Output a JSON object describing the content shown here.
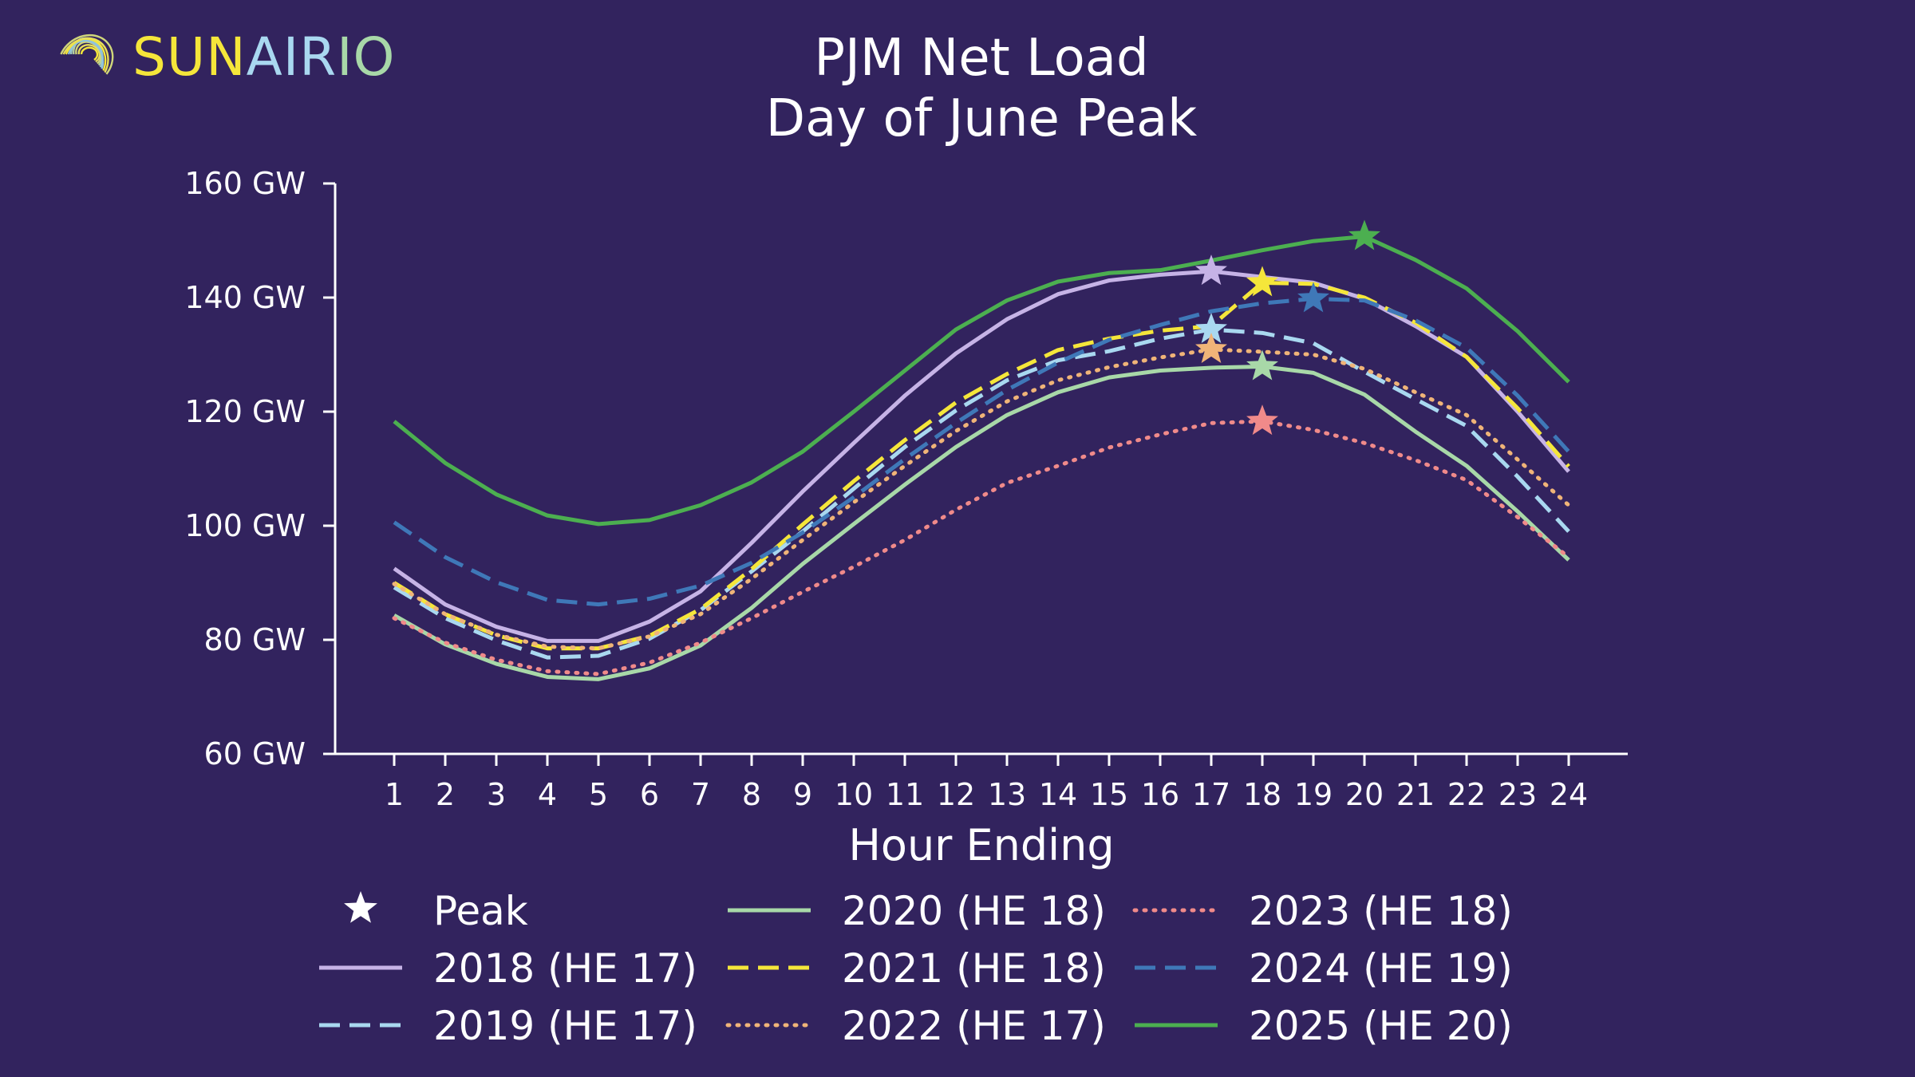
{
  "logo": {
    "part1": "SUN",
    "part2": "AIR",
    "part3": "IO",
    "colors": {
      "part1": "#f5e63a",
      "part2": "#a9d8f0",
      "part3": "#a8d8a8"
    }
  },
  "chart_data": {
    "type": "line",
    "title": "PJM Net Load",
    "subtitle": "Day of June Peak",
    "xlabel": "Hour Ending",
    "ylabel": "",
    "x": [
      1,
      2,
      3,
      4,
      5,
      6,
      7,
      8,
      9,
      10,
      11,
      12,
      13,
      14,
      15,
      16,
      17,
      18,
      19,
      20,
      21,
      22,
      23,
      24
    ],
    "x_tick_labels": [
      "1",
      "2",
      "3",
      "4",
      "5",
      "6",
      "7",
      "8",
      "9",
      "10",
      "11",
      "12",
      "13",
      "14",
      "15",
      "16",
      "17",
      "18",
      "19",
      "20",
      "21",
      "22",
      "23",
      "24"
    ],
    "ylim": [
      60,
      160
    ],
    "y_ticks": [
      60,
      80,
      100,
      120,
      140,
      160
    ],
    "y_tick_labels": [
      "60 GW",
      "80 GW",
      "100 GW",
      "120 GW",
      "140 GW",
      "160 GW"
    ],
    "grid": false,
    "legend_position": "bottom",
    "peak_legend_label": "Peak",
    "series": [
      {
        "name": "2018 (HE 17)",
        "color": "#c6b3e6",
        "dash": "solid",
        "values": [
          92.5,
          86.2,
          82.3,
          79.8,
          79.8,
          83.2,
          88.5,
          97.0,
          106.0,
          114.5,
          122.8,
          130.2,
          136.2,
          140.6,
          143.0,
          144.0,
          144.6,
          143.6,
          142.6,
          139.8,
          135.0,
          129.6,
          120.0,
          109.5
        ],
        "peak": {
          "x": 17,
          "y": 144.6
        }
      },
      {
        "name": "2019 (HE 17)",
        "color": "#a9d8f0",
        "dash": "dashed",
        "values": [
          89.2,
          83.8,
          79.9,
          76.9,
          77.2,
          80.2,
          85.2,
          92.0,
          99.0,
          106.5,
          113.8,
          120.2,
          125.5,
          129.0,
          130.6,
          132.8,
          134.4,
          133.8,
          132.0,
          127.0,
          122.2,
          117.5,
          108.6,
          99.0
        ],
        "peak": {
          "x": 17,
          "y": 134.4
        }
      },
      {
        "name": "2020 (HE 18)",
        "color": "#a8d8a8",
        "dash": "solid",
        "values": [
          84.3,
          79.2,
          75.8,
          73.5,
          73.1,
          75.0,
          79.0,
          85.6,
          93.3,
          100.3,
          107.2,
          113.8,
          119.4,
          123.4,
          126.0,
          127.2,
          127.7,
          127.9,
          126.8,
          123.0,
          116.5,
          110.5,
          102.5,
          94.0
        ],
        "peak": {
          "x": 18,
          "y": 127.9
        }
      },
      {
        "name": "2021 (HE 18)",
        "color": "#f5e63a",
        "dash": "dashed",
        "values": [
          90.0,
          84.5,
          80.8,
          78.5,
          78.5,
          80.7,
          85.4,
          92.4,
          100.2,
          107.8,
          115.0,
          121.6,
          126.6,
          130.8,
          132.8,
          134.2,
          135.0,
          142.6,
          142.4,
          140.0,
          135.6,
          129.6,
          120.6,
          110.4
        ],
        "peak": {
          "x": 18,
          "y": 142.6
        }
      },
      {
        "name": "2022 (HE 17)",
        "color": "#f0b478",
        "dash": "dotted",
        "values": [
          89.8,
          84.5,
          80.9,
          78.8,
          78.5,
          80.6,
          84.5,
          90.7,
          97.5,
          104.1,
          110.5,
          116.6,
          121.8,
          125.5,
          127.8,
          129.5,
          130.9,
          130.5,
          130.0,
          127.5,
          123.4,
          119.4,
          111.6,
          103.6
        ],
        "peak": {
          "x": 17,
          "y": 130.9
        }
      },
      {
        "name": "2023 (HE 18)",
        "color": "#f08a8a",
        "dash": "dotted",
        "values": [
          83.8,
          79.5,
          76.5,
          74.5,
          74.0,
          76.0,
          79.5,
          83.8,
          88.4,
          92.8,
          97.5,
          102.8,
          107.5,
          110.5,
          113.7,
          116.0,
          118.0,
          118.3,
          116.8,
          114.5,
          111.5,
          108.0,
          101.5,
          94.5
        ],
        "peak": {
          "x": 18,
          "y": 118.3
        }
      },
      {
        "name": "2024 (HE 19)",
        "color": "#3f78b8",
        "dash": "dashed",
        "values": [
          100.6,
          94.5,
          90.1,
          87.0,
          86.2,
          87.2,
          89.5,
          93.5,
          98.8,
          105.0,
          111.7,
          118.0,
          123.8,
          128.6,
          132.6,
          135.2,
          137.6,
          139.0,
          139.8,
          139.5,
          136.0,
          131.2,
          122.8,
          113.0
        ],
        "peak": {
          "x": 19,
          "y": 139.8
        }
      },
      {
        "name": "2025 (HE 20)",
        "color": "#4caf50",
        "dash": "solid",
        "values": [
          118.3,
          111.0,
          105.5,
          101.8,
          100.3,
          101.0,
          103.6,
          107.6,
          113.0,
          120.0,
          127.2,
          134.4,
          139.5,
          142.8,
          144.3,
          144.8,
          146.5,
          148.3,
          149.9,
          150.7,
          146.6,
          141.6,
          134.1,
          125.2
        ],
        "peak": {
          "x": 20,
          "y": 150.7
        }
      }
    ]
  }
}
